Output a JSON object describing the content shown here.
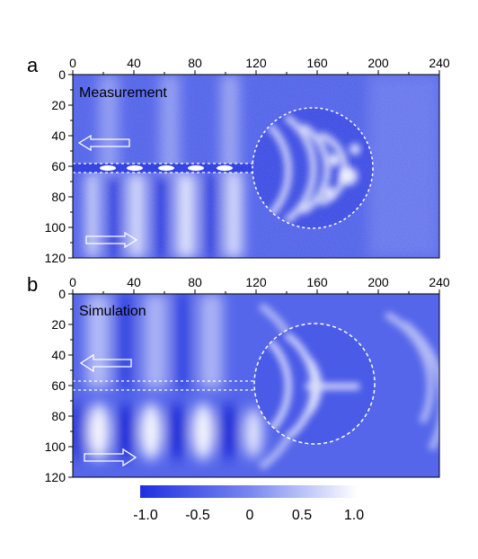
{
  "panels": [
    {
      "letter": "a",
      "title": "Measurement",
      "x_ticks": [
        "0",
        "40",
        "80",
        "120",
        "160",
        "200",
        "240"
      ],
      "y_ticks": [
        "0",
        "20",
        "40",
        "60",
        "80",
        "100",
        "120"
      ]
    },
    {
      "letter": "b",
      "title": "Simulation",
      "x_ticks": [
        "0",
        "40",
        "80",
        "120",
        "160",
        "200",
        "240"
      ],
      "y_ticks": [
        "0",
        "20",
        "40",
        "60",
        "80",
        "100",
        "120"
      ]
    }
  ],
  "colorbar": {
    "ticks": [
      "-1.0",
      "-0.5",
      "0",
      "0.5",
      "1.0"
    ],
    "range": [
      -1.0,
      1.0
    ],
    "low_color": "#2030e0",
    "high_color": "#ffffff"
  },
  "colors": {
    "field_blue": "#3c4fe6",
    "field_mid": "#6f7ff0"
  }
}
